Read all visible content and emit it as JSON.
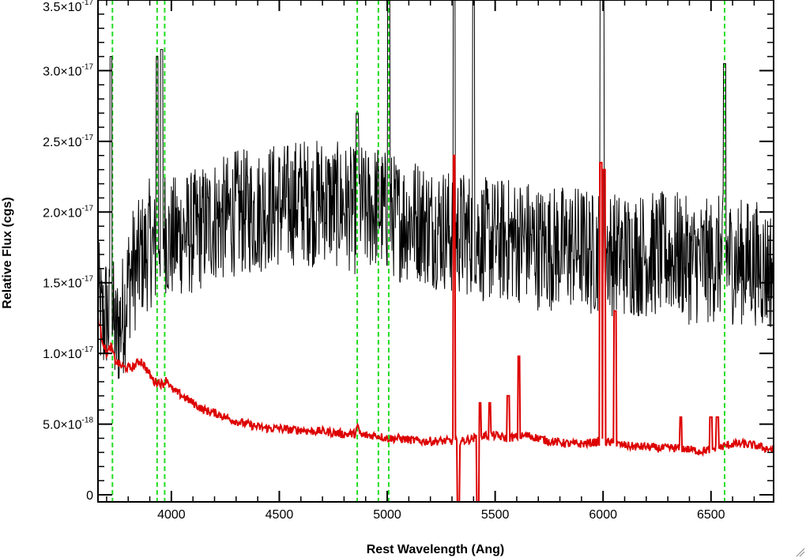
{
  "chart_data": {
    "type": "line",
    "title": "",
    "xlabel": "Rest Wavelength (Ang)",
    "ylabel": "Relative Flux (cgs)",
    "xlim": [
      3660,
      6790
    ],
    "ylim": [
      -5e-19,
      3.5e-17
    ],
    "x_ticks": [
      {
        "value": 4000,
        "label": "4000"
      },
      {
        "value": 4500,
        "label": "4500"
      },
      {
        "value": 5000,
        "label": "5000"
      },
      {
        "value": 5500,
        "label": "5500"
      },
      {
        "value": 6000,
        "label": "6000"
      },
      {
        "value": 6500,
        "label": "6500"
      }
    ],
    "y_ticks": [
      {
        "value": 0,
        "mantissa": "0",
        "exponent": ""
      },
      {
        "value": 5e-18,
        "mantissa": "5.0×10",
        "exponent": "-18"
      },
      {
        "value": 1e-17,
        "mantissa": "1.0×10",
        "exponent": "-17"
      },
      {
        "value": 1.5e-17,
        "mantissa": "1.5×10",
        "exponent": "-17"
      },
      {
        "value": 2e-17,
        "mantissa": "2.0×10",
        "exponent": "-17"
      },
      {
        "value": 2.5e-17,
        "mantissa": "2.5×10",
        "exponent": "-17"
      },
      {
        "value": 3e-17,
        "mantissa": "3.0×10",
        "exponent": "-17"
      },
      {
        "value": 3.5e-17,
        "mantissa": "3.5×10",
        "exponent": "-17"
      }
    ],
    "reference_lines": {
      "color": "#22dd22",
      "style": "dashed",
      "x": [
        3727,
        3934,
        3969,
        4861,
        4959,
        5007,
        6563
      ]
    },
    "series": [
      {
        "color": "#000000",
        "description": "noisy observed spectrum",
        "x": [
          3660,
          3680,
          3700,
          3715,
          3727,
          3740,
          3760,
          3780,
          3800,
          3820,
          3840,
          3860,
          3880,
          3900,
          3920,
          3934,
          3950,
          3969,
          3985,
          4000,
          4050,
          4100,
          4150,
          4200,
          4250,
          4300,
          4350,
          4400,
          4450,
          4500,
          4550,
          4600,
          4650,
          4700,
          4750,
          4800,
          4850,
          4861,
          4900,
          4959,
          4980,
          5007,
          5050,
          5100,
          5150,
          5200,
          5250,
          5300,
          5320,
          5350,
          5400,
          5450,
          5500,
          5550,
          5600,
          5650,
          5700,
          5750,
          5800,
          5850,
          5900,
          5950,
          5990,
          6000,
          6010,
          6050,
          6100,
          6150,
          6200,
          6250,
          6300,
          6350,
          6400,
          6450,
          6500,
          6563,
          6600,
          6650,
          6700,
          6750,
          6790
        ],
        "y": [
          1.4e-17,
          1.2e-17,
          1.3e-17,
          1.2e-17,
          1.3e-17,
          1.1e-17,
          1.2e-17,
          1.3e-17,
          1.5e-17,
          1.6e-17,
          1.6e-17,
          1.7e-17,
          1.7e-17,
          1.8e-17,
          1.7e-17,
          1.8e-17,
          1.9e-17,
          1.9e-17,
          1.8e-17,
          1.8e-17,
          1.85e-17,
          1.85e-17,
          1.9e-17,
          1.95e-17,
          1.95e-17,
          2e-17,
          2e-17,
          2e-17,
          2.05e-17,
          2.05e-17,
          2.05e-17,
          2.1e-17,
          2.05e-17,
          2.1e-17,
          2.05e-17,
          2.05e-17,
          2e-17,
          2.1e-17,
          2e-17,
          2.05e-17,
          2e-17,
          2e-17,
          1.95e-17,
          1.95e-17,
          1.95e-17,
          1.9e-17,
          1.9e-17,
          1.85e-17,
          1.85e-17,
          1.85e-17,
          1.85e-17,
          1.8e-17,
          1.8e-17,
          1.8e-17,
          1.8e-17,
          1.8e-17,
          1.75e-17,
          1.75e-17,
          1.75e-17,
          1.75e-17,
          1.75e-17,
          1.7e-17,
          1.75e-17,
          1.8e-17,
          1.75e-17,
          1.7e-17,
          1.7e-17,
          1.7e-17,
          1.7e-17,
          1.7e-17,
          1.7e-17,
          1.7e-17,
          1.65e-17,
          1.65e-17,
          1.65e-17,
          1.7e-17,
          1.65e-17,
          1.65e-17,
          1.65e-17,
          1.6e-17,
          1.6e-17
        ],
        "spikes": [
          {
            "x": 3720,
            "y": 3.1e-17
          },
          {
            "x": 3934,
            "y": 3.1e-17
          },
          {
            "x": 3955,
            "y": 3.15e-17
          },
          {
            "x": 4861,
            "y": 2.7e-17
          },
          {
            "x": 5007,
            "y": 3.5e-17
          },
          {
            "x": 5310,
            "y": 3.5e-17
          },
          {
            "x": 5400,
            "y": 3.5e-17
          },
          {
            "x": 5990,
            "y": 3.5e-17
          },
          {
            "x": 6000,
            "y": 3.5e-17
          },
          {
            "x": 6563,
            "y": 3.05e-17
          }
        ],
        "noise_amplitude": 4.5e-18
      },
      {
        "color": "#dd0000",
        "description": "smooth model continuum",
        "x": [
          3660,
          3680,
          3700,
          3720,
          3740,
          3760,
          3780,
          3800,
          3820,
          3840,
          3860,
          3880,
          3900,
          3920,
          3940,
          3960,
          3980,
          4000,
          4050,
          4100,
          4150,
          4200,
          4250,
          4300,
          4350,
          4400,
          4450,
          4500,
          4550,
          4600,
          4650,
          4700,
          4750,
          4800,
          4850,
          4861,
          4880,
          4900,
          4950,
          5000,
          5050,
          5100,
          5150,
          5200,
          5250,
          5300,
          5350,
          5400,
          5450,
          5500,
          5550,
          5600,
          5650,
          5700,
          5750,
          5800,
          5850,
          5900,
          5950,
          6000,
          6050,
          6100,
          6150,
          6200,
          6250,
          6300,
          6350,
          6400,
          6450,
          6500,
          6550,
          6600,
          6650,
          6700,
          6750,
          6790
        ],
        "y": [
          1.25e-17,
          1.1e-17,
          1e-17,
          1.05e-17,
          9.5e-18,
          9.2e-18,
          9e-18,
          9e-18,
          9e-18,
          9.3e-18,
          9.5e-18,
          9e-18,
          8.5e-18,
          8e-18,
          8e-18,
          7.8e-18,
          8.2e-18,
          7.5e-18,
          7e-18,
          6.5e-18,
          6e-18,
          5.8e-18,
          5.5e-18,
          5.2e-18,
          5e-18,
          4.8e-18,
          4.7e-18,
          4.7e-18,
          4.6e-18,
          4.6e-18,
          4.5e-18,
          4.5e-18,
          4.4e-18,
          4.3e-18,
          4.3e-18,
          4.8e-18,
          4.2e-18,
          4.2e-18,
          4.2e-18,
          4e-18,
          4e-18,
          3.9e-18,
          3.8e-18,
          3.8e-18,
          3.8e-18,
          3.8e-18,
          3.8e-18,
          4e-18,
          4.2e-18,
          4.2e-18,
          4e-18,
          4.1e-18,
          4.2e-18,
          4e-18,
          3.8e-18,
          3.7e-18,
          3.6e-18,
          3.6e-18,
          3.7e-18,
          3.8e-18,
          3.6e-18,
          3.5e-18,
          3.4e-18,
          3.4e-18,
          3.3e-18,
          3.3e-18,
          3.3e-18,
          3.2e-18,
          3.1e-18,
          3.2e-18,
          3.4e-18,
          3.6e-18,
          3.6e-18,
          3.5e-18,
          3.3e-18,
          3.2e-18
        ],
        "spikes": [
          {
            "x": 5310,
            "y": 2.4e-17
          },
          {
            "x": 5330,
            "y": -5e-19
          },
          {
            "x": 5420,
            "y": -5e-19
          },
          {
            "x": 5430,
            "y": 6.5e-18
          },
          {
            "x": 5475,
            "y": 6.5e-18
          },
          {
            "x": 5560,
            "y": 7e-18
          },
          {
            "x": 5610,
            "y": 9.8e-18
          },
          {
            "x": 5990,
            "y": 2.35e-17
          },
          {
            "x": 6005,
            "y": 2.3e-17
          },
          {
            "x": 6055,
            "y": 1.3e-17
          },
          {
            "x": 6360,
            "y": 5.5e-18
          },
          {
            "x": 6500,
            "y": 5.5e-18
          },
          {
            "x": 6530,
            "y": 5.5e-18
          }
        ]
      }
    ]
  }
}
